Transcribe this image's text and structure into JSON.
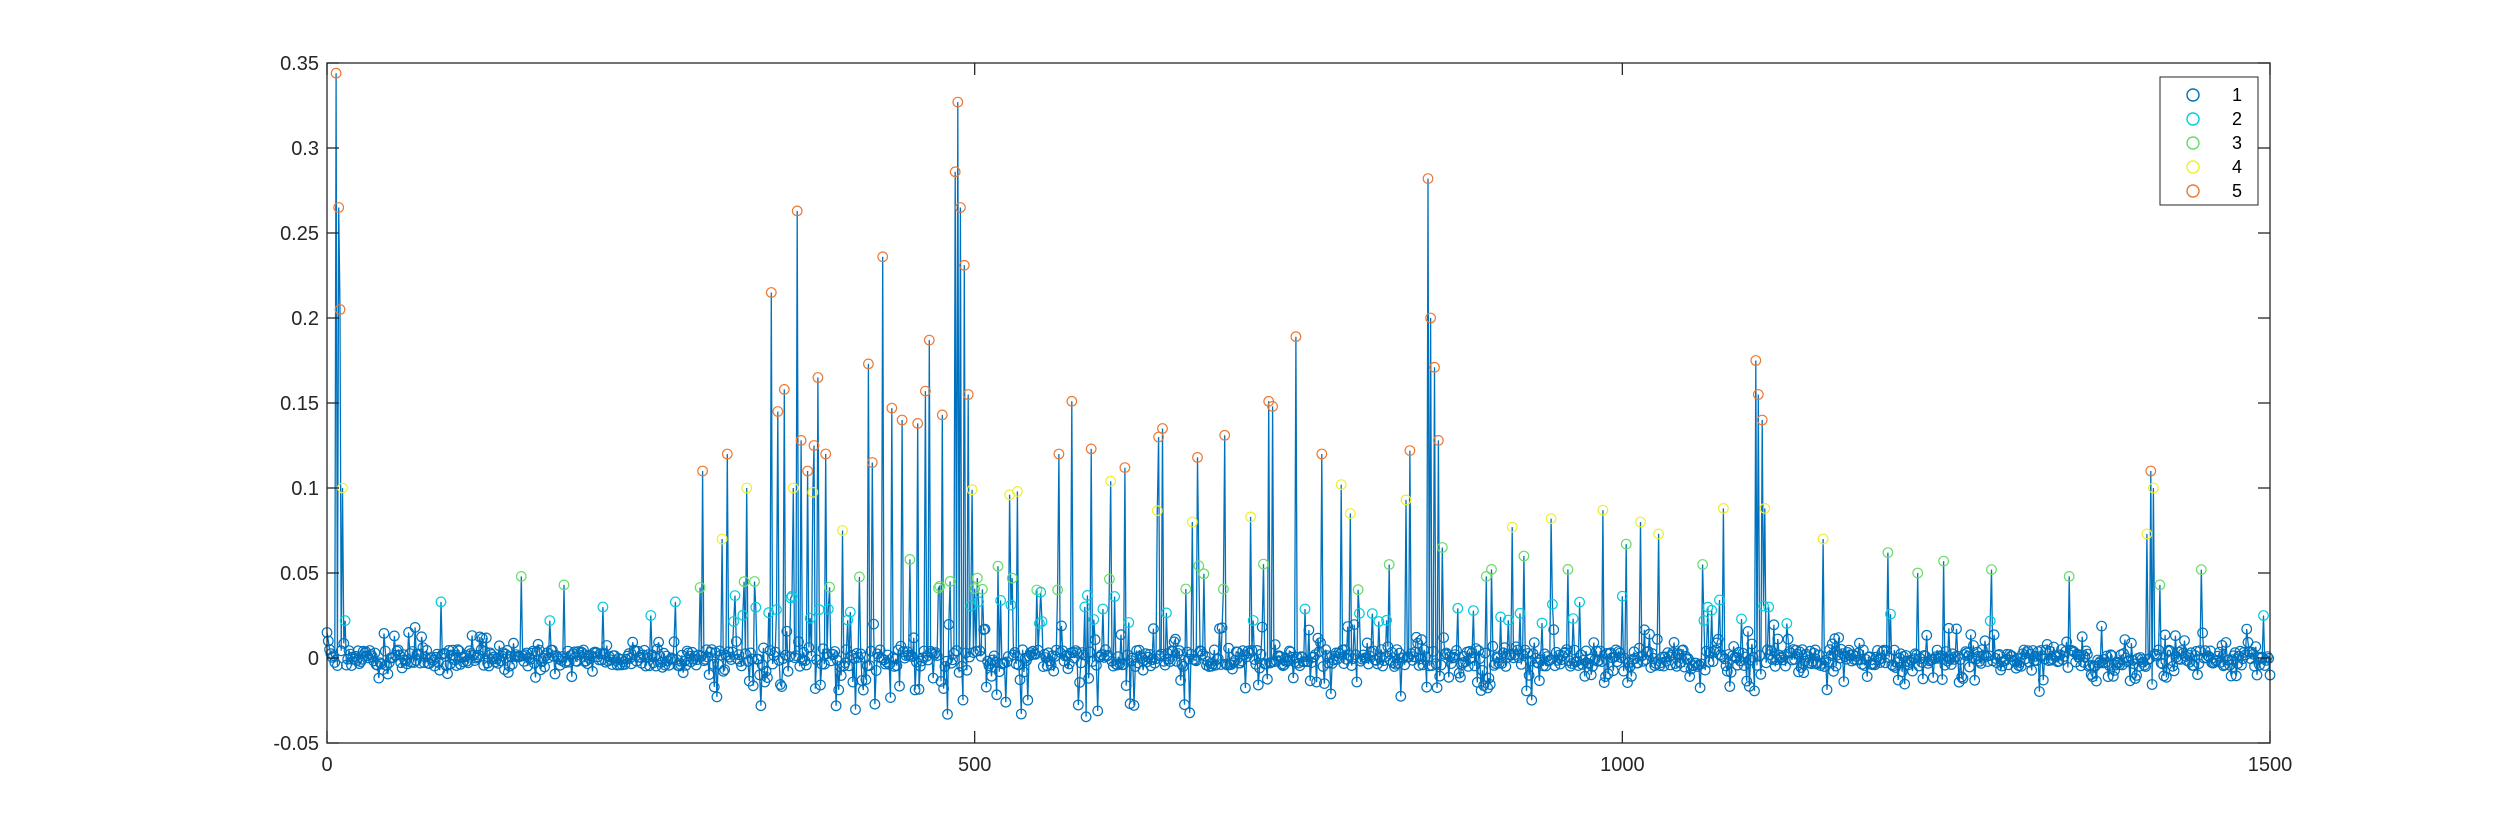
{
  "chart_data": {
    "type": "line",
    "title": "",
    "xlabel": "",
    "ylabel": "",
    "xlim": [
      0,
      1500
    ],
    "ylim": [
      -0.05,
      0.35
    ],
    "x_ticks": [
      0,
      500,
      1000,
      1500
    ],
    "x_tick_labels": [
      "0",
      "500",
      "1000",
      "1500"
    ],
    "y_ticks": [
      -0.05,
      0,
      0.05,
      0.1,
      0.15,
      0.2,
      0.25,
      0.3,
      0.35
    ],
    "y_tick_labels": [
      "-0.05",
      "0",
      "0.05",
      "0.1",
      "0.15",
      "0.2",
      "0.25",
      "0.3",
      "0.35"
    ],
    "grid": false,
    "line_color": "#0072BD",
    "legend_position": "top-right",
    "legend": [
      {
        "label": "1",
        "color": "#0072BD"
      },
      {
        "label": "2",
        "color": "#00CCDD"
      },
      {
        "label": "3",
        "color": "#66DD66"
      },
      {
        "label": "4",
        "color": "#EEEE33"
      },
      {
        "label": "5",
        "color": "#EE7733"
      }
    ],
    "class_thresholds": [
      0.02,
      0.04,
      0.07,
      0.11
    ],
    "peaks": [
      {
        "x": 7,
        "y": 0.344
      },
      {
        "x": 9,
        "y": 0.265
      },
      {
        "x": 10,
        "y": 0.205
      },
      {
        "x": 12,
        "y": 0.1
      },
      {
        "x": 14,
        "y": 0.022
      },
      {
        "x": 28,
        "y": 0.004
      },
      {
        "x": 52,
        "y": 0.013
      },
      {
        "x": 68,
        "y": 0.018
      },
      {
        "x": 88,
        "y": 0.033
      },
      {
        "x": 150,
        "y": 0.048
      },
      {
        "x": 172,
        "y": 0.022
      },
      {
        "x": 183,
        "y": 0.043
      },
      {
        "x": 213,
        "y": 0.03
      },
      {
        "x": 250,
        "y": 0.025
      },
      {
        "x": 269,
        "y": 0.033
      },
      {
        "x": 290,
        "y": 0.11
      },
      {
        "x": 305,
        "y": 0.07
      },
      {
        "x": 309,
        "y": 0.12
      },
      {
        "x": 324,
        "y": 0.1
      },
      {
        "x": 330,
        "y": 0.045
      },
      {
        "x": 343,
        "y": 0.215
      },
      {
        "x": 348,
        "y": 0.145
      },
      {
        "x": 353,
        "y": 0.158
      },
      {
        "x": 360,
        "y": 0.1
      },
      {
        "x": 363,
        "y": 0.263
      },
      {
        "x": 366,
        "y": 0.128
      },
      {
        "x": 371,
        "y": 0.11
      },
      {
        "x": 376,
        "y": 0.125
      },
      {
        "x": 379,
        "y": 0.165
      },
      {
        "x": 385,
        "y": 0.12
      },
      {
        "x": 398,
        "y": 0.075
      },
      {
        "x": 418,
        "y": 0.173
      },
      {
        "x": 421,
        "y": 0.115
      },
      {
        "x": 429,
        "y": 0.236
      },
      {
        "x": 436,
        "y": 0.147
      },
      {
        "x": 444,
        "y": 0.14
      },
      {
        "x": 450,
        "y": 0.058
      },
      {
        "x": 456,
        "y": 0.138
      },
      {
        "x": 462,
        "y": 0.157
      },
      {
        "x": 465,
        "y": 0.187
      },
      {
        "x": 475,
        "y": 0.143
      },
      {
        "x": 485,
        "y": 0.286
      },
      {
        "x": 487,
        "y": 0.327
      },
      {
        "x": 489,
        "y": 0.265
      },
      {
        "x": 492,
        "y": 0.231
      },
      {
        "x": 495,
        "y": 0.155
      },
      {
        "x": 498,
        "y": 0.099
      },
      {
        "x": 502,
        "y": 0.047
      },
      {
        "x": 518,
        "y": 0.054
      },
      {
        "x": 527,
        "y": 0.096
      },
      {
        "x": 533,
        "y": 0.098
      },
      {
        "x": 565,
        "y": 0.12
      },
      {
        "x": 575,
        "y": 0.151
      },
      {
        "x": 590,
        "y": 0.123
      },
      {
        "x": 605,
        "y": 0.104
      },
      {
        "x": 616,
        "y": 0.112
      },
      {
        "x": 642,
        "y": 0.13
      },
      {
        "x": 645,
        "y": 0.135
      },
      {
        "x": 668,
        "y": 0.08
      },
      {
        "x": 672,
        "y": 0.118
      },
      {
        "x": 693,
        "y": 0.131
      },
      {
        "x": 713,
        "y": 0.083
      },
      {
        "x": 727,
        "y": 0.151
      },
      {
        "x": 730,
        "y": 0.148
      },
      {
        "x": 748,
        "y": 0.189
      },
      {
        "x": 768,
        "y": 0.12
      },
      {
        "x": 783,
        "y": 0.102
      },
      {
        "x": 790,
        "y": 0.085
      },
      {
        "x": 820,
        "y": 0.055
      },
      {
        "x": 833,
        "y": 0.093
      },
      {
        "x": 836,
        "y": 0.122
      },
      {
        "x": 850,
        "y": 0.282
      },
      {
        "x": 852,
        "y": 0.2
      },
      {
        "x": 855,
        "y": 0.171
      },
      {
        "x": 858,
        "y": 0.128
      },
      {
        "x": 861,
        "y": 0.065
      },
      {
        "x": 895,
        "y": 0.048
      },
      {
        "x": 915,
        "y": 0.077
      },
      {
        "x": 924,
        "y": 0.06
      },
      {
        "x": 945,
        "y": 0.082
      },
      {
        "x": 985,
        "y": 0.087
      },
      {
        "x": 1003,
        "y": 0.067
      },
      {
        "x": 1014,
        "y": 0.08
      },
      {
        "x": 1028,
        "y": 0.073
      },
      {
        "x": 1062,
        "y": 0.055
      },
      {
        "x": 1078,
        "y": 0.088
      },
      {
        "x": 1103,
        "y": 0.175
      },
      {
        "x": 1105,
        "y": 0.155
      },
      {
        "x": 1108,
        "y": 0.14
      },
      {
        "x": 1110,
        "y": 0.088
      },
      {
        "x": 1113,
        "y": 0.03
      },
      {
        "x": 1155,
        "y": 0.07
      },
      {
        "x": 1205,
        "y": 0.062
      },
      {
        "x": 1228,
        "y": 0.05
      },
      {
        "x": 1248,
        "y": 0.057
      },
      {
        "x": 1285,
        "y": 0.052
      },
      {
        "x": 1345,
        "y": 0.048
      },
      {
        "x": 1405,
        "y": 0.073
      },
      {
        "x": 1408,
        "y": 0.11
      },
      {
        "x": 1410,
        "y": 0.1
      },
      {
        "x": 1415,
        "y": 0.043
      },
      {
        "x": 1447,
        "y": 0.052
      },
      {
        "x": 1495,
        "y": 0.025
      }
    ]
  }
}
